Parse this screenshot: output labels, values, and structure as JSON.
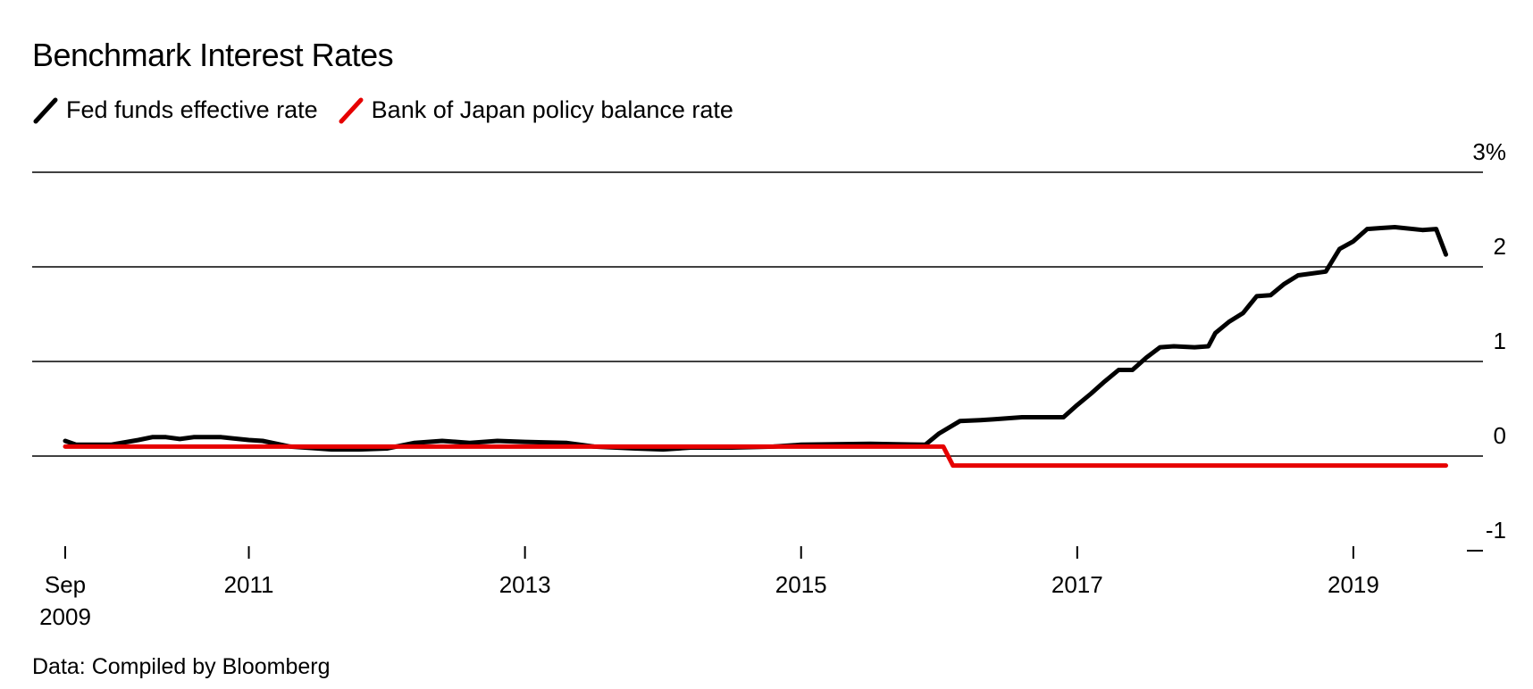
{
  "title": "Benchmark Interest Rates",
  "source": "Data: Compiled by Bloomberg",
  "colors": {
    "fed": "#000000",
    "boj": "#e60000",
    "grid": "#000000"
  },
  "chart_data": {
    "type": "line",
    "title": "Benchmark Interest Rates",
    "xlabel": "",
    "ylabel": "",
    "ylim": [
      -1,
      3
    ],
    "xlim": [
      2009.67,
      2019.9
    ],
    "y_ticks": [
      {
        "value": 3,
        "label": "3%"
      },
      {
        "value": 2,
        "label": "2"
      },
      {
        "value": 1,
        "label": "1"
      },
      {
        "value": 0,
        "label": "0"
      },
      {
        "value": -1,
        "label": "-1"
      }
    ],
    "x_ticks": [
      {
        "value": 2009.67,
        "label": "Sep",
        "label2": "2009"
      },
      {
        "value": 2011.0,
        "label": "2011",
        "label2": ""
      },
      {
        "value": 2013.0,
        "label": "2013",
        "label2": ""
      },
      {
        "value": 2015.0,
        "label": "2015",
        "label2": ""
      },
      {
        "value": 2017.0,
        "label": "2017",
        "label2": ""
      },
      {
        "value": 2019.0,
        "label": "2019",
        "label2": ""
      }
    ],
    "series": [
      {
        "name": "Fed funds effective rate",
        "color": "#000000",
        "x": [
          2009.67,
          2009.75,
          2010.0,
          2010.2,
          2010.3,
          2010.4,
          2010.5,
          2010.6,
          2010.8,
          2011.0,
          2011.1,
          2011.3,
          2011.5,
          2011.6,
          2011.8,
          2012.0,
          2012.2,
          2012.4,
          2012.6,
          2012.8,
          2013.0,
          2013.3,
          2013.5,
          2013.8,
          2014.0,
          2014.2,
          2014.5,
          2014.8,
          2015.0,
          2015.5,
          2015.9,
          2016.0,
          2016.15,
          2016.3,
          2016.4,
          2016.5,
          2016.6,
          2016.9,
          2017.0,
          2017.1,
          2017.2,
          2017.3,
          2017.4,
          2017.5,
          2017.6,
          2017.7,
          2017.85,
          2017.95,
          2018.0,
          2018.1,
          2018.2,
          2018.3,
          2018.4,
          2018.5,
          2018.6,
          2018.8,
          2018.9,
          2019.0,
          2019.1,
          2019.2,
          2019.3,
          2019.5,
          2019.6,
          2019.67
        ],
        "values": [
          0.16,
          0.12,
          0.12,
          0.17,
          0.2,
          0.2,
          0.18,
          0.2,
          0.2,
          0.17,
          0.16,
          0.1,
          0.08,
          0.07,
          0.07,
          0.08,
          0.14,
          0.16,
          0.14,
          0.16,
          0.15,
          0.14,
          0.1,
          0.08,
          0.07,
          0.09,
          0.09,
          0.1,
          0.12,
          0.13,
          0.12,
          0.24,
          0.37,
          0.38,
          0.39,
          0.4,
          0.41,
          0.41,
          0.54,
          0.66,
          0.79,
          0.91,
          0.91,
          1.04,
          1.15,
          1.16,
          1.15,
          1.16,
          1.3,
          1.42,
          1.51,
          1.69,
          1.7,
          1.82,
          1.91,
          1.95,
          2.19,
          2.27,
          2.4,
          2.41,
          2.42,
          2.39,
          2.4,
          2.13
        ]
      },
      {
        "name": "Bank of Japan policy balance rate",
        "color": "#e60000",
        "x": [
          2009.67,
          2015.95,
          2016.03,
          2016.1,
          2019.67
        ],
        "values": [
          0.1,
          0.1,
          0.1,
          -0.1,
          -0.1
        ]
      }
    ]
  }
}
